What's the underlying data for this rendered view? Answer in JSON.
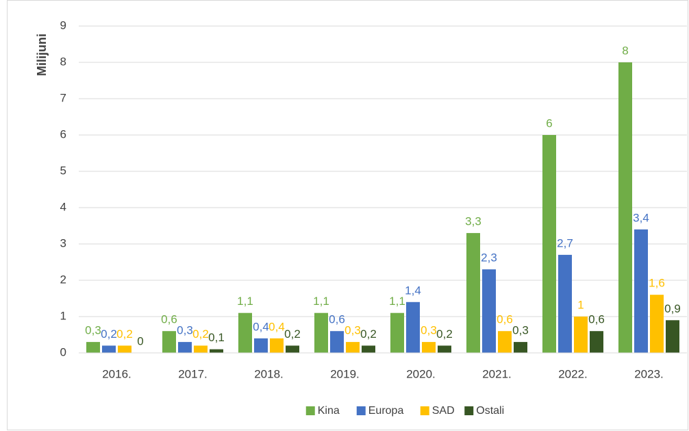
{
  "chart_data": {
    "type": "bar",
    "y_label": "Milijuni",
    "categories": [
      "2016.",
      "2017.",
      "2018.",
      "2019.",
      "2020.",
      "2021.",
      "2022.",
      "2023."
    ],
    "series": [
      {
        "name": "Kina",
        "color": "#70ad47",
        "values": [
          0.3,
          0.6,
          1.1,
          1.1,
          1.1,
          3.3,
          6,
          8
        ],
        "value_labels": [
          "0,3",
          "0,6",
          "1,1",
          "1,1",
          "1,1",
          "3,3",
          "6",
          "8"
        ]
      },
      {
        "name": "Europa",
        "color": "#4472c4",
        "values": [
          0.2,
          0.3,
          0.4,
          0.6,
          1.4,
          2.3,
          2.7,
          3.4
        ],
        "value_labels": [
          "0,2",
          "0,3",
          "0,4",
          "0,6",
          "1,4",
          "2,3",
          "2,7",
          "3,4"
        ]
      },
      {
        "name": "SAD",
        "color": "#ffc000",
        "values": [
          0.2,
          0.2,
          0.4,
          0.3,
          0.3,
          0.6,
          1,
          1.6
        ],
        "value_labels": [
          "0,2",
          "0,2",
          "0,4",
          "0,3",
          "0,3",
          "0,6",
          "1",
          "1,6"
        ]
      },
      {
        "name": "Ostali",
        "color": "#375623",
        "values": [
          0,
          0.1,
          0.2,
          0.2,
          0.2,
          0.3,
          0.6,
          0.9
        ],
        "value_labels": [
          "0",
          "0,1",
          "0,2",
          "0,2",
          "0,2",
          "0,3",
          "0,6",
          "0,9"
        ]
      }
    ],
    "ylim": [
      0,
      9
    ],
    "yticks": [
      0,
      1,
      2,
      3,
      4,
      5,
      6,
      7,
      8,
      9
    ],
    "grid": true,
    "legend": "bottom"
  }
}
